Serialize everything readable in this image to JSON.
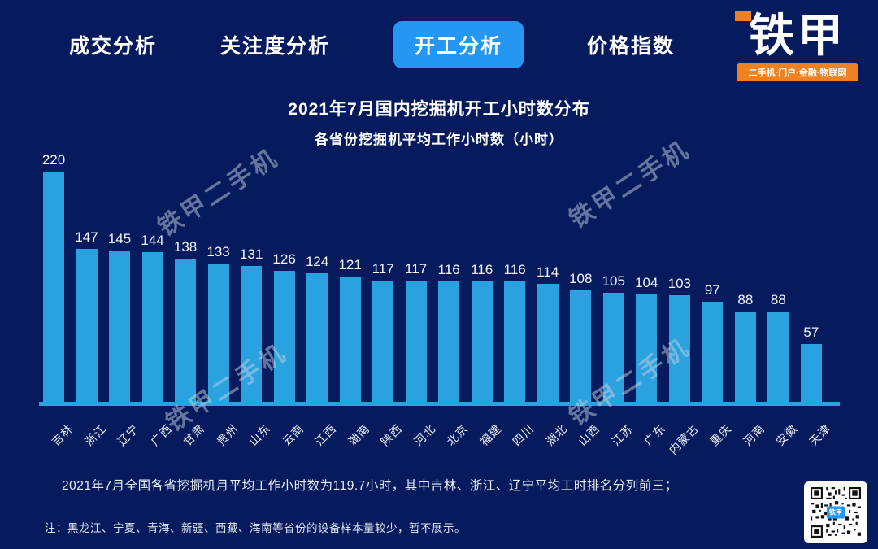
{
  "nav": {
    "tabs": [
      {
        "id": "deal-analysis",
        "label": "成交分析",
        "active": false
      },
      {
        "id": "attention-analysis",
        "label": "关注度分析",
        "active": false
      },
      {
        "id": "work-analysis",
        "label": "开工分析",
        "active": true
      },
      {
        "id": "price-index",
        "label": "价格指数",
        "active": false
      }
    ]
  },
  "logo": {
    "name": "铁甲",
    "tagline": "二手机·门户·金融·物联网"
  },
  "chart_data": {
    "type": "bar",
    "title": "2021年7月国内挖掘机开工小时数分布",
    "subtitle": "各省份挖掘机平均工作小时数（小时）",
    "categories": [
      "吉林",
      "浙江",
      "辽宁",
      "广西",
      "甘肃",
      "贵州",
      "山东",
      "云南",
      "江西",
      "湖南",
      "陕西",
      "河北",
      "北京",
      "福建",
      "四川",
      "湖北",
      "山西",
      "江苏",
      "广东",
      "内蒙古",
      "重庆",
      "河南",
      "安徽",
      "天津"
    ],
    "values": [
      220,
      147,
      145,
      144,
      138,
      133,
      131,
      126,
      124,
      121,
      117,
      117,
      116,
      116,
      116,
      114,
      108,
      105,
      104,
      103,
      97,
      88,
      88,
      57
    ],
    "xlabel": "",
    "ylabel": "",
    "ylim": [
      0,
      230
    ],
    "grid": false,
    "legend": false,
    "value_labels": true,
    "bar_color": "#2aa2e0",
    "axis_line_color": "#2aa2e0"
  },
  "watermark": {
    "text": "铁甲二手机"
  },
  "footer": {
    "summary": "2021年7月全国各省挖掘机月平均工作小时数为119.7小时，其中吉林、浙江、辽宁平均工时排名分列前三；",
    "note": "注：黑龙江、宁夏、青海、新疆、西藏、海南等省份的设备样本量较少，暂不展示。"
  },
  "qr": {
    "center_label": "铁甲"
  },
  "colors": {
    "background": "#051b5e",
    "bar": "#2aa2e0",
    "active_tab": "#2696f3",
    "logo_orange": "#ee8222",
    "text": "#ffffff"
  }
}
